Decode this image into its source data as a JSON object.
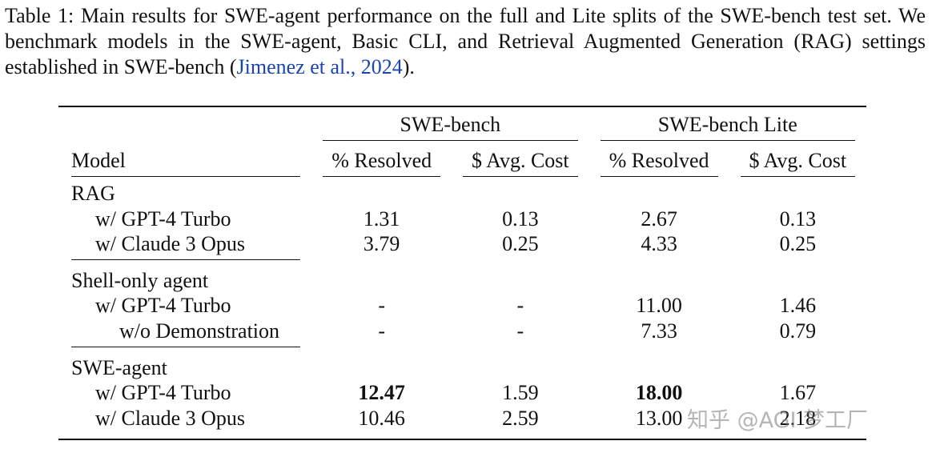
{
  "caption": {
    "label": "Table 1:",
    "text": "Main results for SWE-agent performance on the full and Lite splits of the SWE-bench test set. We benchmark models in the SWE-agent, Basic CLI, and Retrieval Augmented Generation (RAG) settings established in SWE-bench (",
    "citation": "Jimenez et al., 2024",
    "closing": ")."
  },
  "table": {
    "groups": [
      "SWE-bench",
      "SWE-bench Lite"
    ],
    "columns": [
      "Model",
      "% Resolved",
      "$ Avg. Cost",
      "% Resolved",
      "$ Avg. Cost"
    ],
    "sections": [
      {
        "name": "RAG",
        "rows": [
          {
            "model": "w/ GPT-4 Turbo",
            "cells": [
              "1.31",
              "0.13",
              "2.67",
              "0.13"
            ]
          },
          {
            "model": "w/ Claude 3 Opus",
            "cells": [
              "3.79",
              "0.25",
              "4.33",
              "0.25"
            ]
          }
        ]
      },
      {
        "name": "Shell-only agent",
        "rows": [
          {
            "model": "w/ GPT-4 Turbo",
            "cells": [
              "-",
              "-",
              "11.00",
              "1.46"
            ],
            "sub_rows": [
              {
                "model": "w/o Demonstration",
                "cells": [
                  "-",
                  "-",
                  "7.33",
                  "0.79"
                ]
              }
            ]
          }
        ]
      },
      {
        "name": "SWE-agent",
        "rows": [
          {
            "model": "w/ GPT-4 Turbo",
            "cells": [
              "12.47",
              "1.59",
              "18.00",
              "1.67"
            ],
            "bold": [
              0,
              2
            ]
          },
          {
            "model": "w/ Claude 3 Opus",
            "cells": [
              "10.46",
              "2.59",
              "13.00",
              "2.18"
            ]
          }
        ]
      }
    ]
  },
  "watermark": "知乎 @AGI 梦工厂"
}
